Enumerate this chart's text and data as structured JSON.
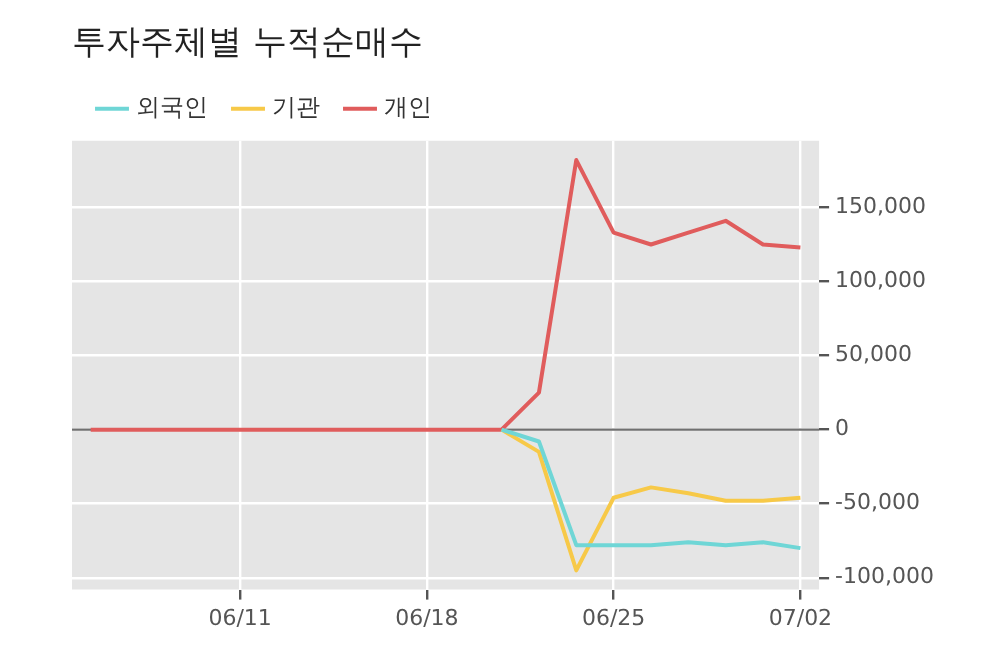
{
  "chart_data": {
    "type": "line",
    "title": "투자주체별 누적순매수",
    "categories": [
      null,
      null,
      null,
      null,
      "06/11",
      null,
      null,
      null,
      null,
      "06/18",
      null,
      null,
      null,
      null,
      "06/25",
      null,
      null,
      null,
      null,
      "07/02"
    ],
    "series": [
      {
        "name": "외국인",
        "color": "#6fd6d6",
        "values": [
          null,
          null,
          null,
          null,
          null,
          null,
          null,
          null,
          null,
          null,
          null,
          0,
          -8000,
          -78000,
          -78000,
          -78000,
          -76000,
          -78000,
          -76000,
          -80000
        ]
      },
      {
        "name": "기관",
        "color": "#f7c948",
        "values": [
          null,
          null,
          null,
          null,
          null,
          null,
          null,
          null,
          null,
          null,
          null,
          0,
          -15000,
          -95000,
          -46000,
          -39000,
          -43000,
          -48000,
          -48000,
          -46000
        ]
      },
      {
        "name": "개인",
        "color": "#e05c5c",
        "values": [
          0,
          0,
          0,
          0,
          0,
          0,
          0,
          0,
          0,
          0,
          0,
          0,
          25000,
          182000,
          133000,
          125000,
          133000,
          141000,
          125000,
          123000
        ]
      }
    ],
    "ylim": [
      -108000,
      195000
    ],
    "yticks": [
      {
        "value": -100000,
        "label": "-100,000"
      },
      {
        "value": -50000,
        "label": "-50,000"
      },
      0,
      {
        "value": 50000,
        "label": "50,000"
      },
      {
        "value": 100000,
        "label": "100,000"
      },
      {
        "value": 150000,
        "label": "150,000"
      }
    ],
    "ref_lines": [
      {
        "axis": "y",
        "value": 0,
        "color": "#707070"
      }
    ],
    "grid": true,
    "legend": "top left",
    "marker": "none",
    "line_style": "solid"
  }
}
